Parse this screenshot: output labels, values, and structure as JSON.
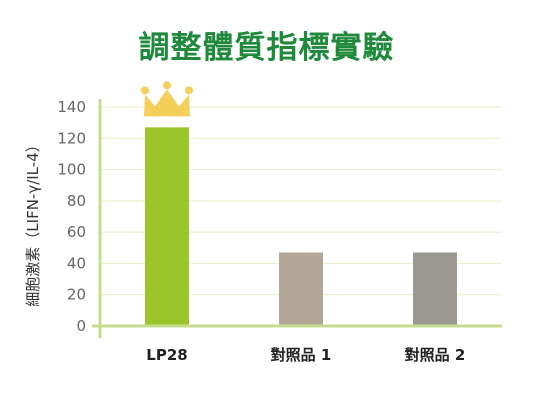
{
  "chart_data": {
    "type": "bar",
    "title": "調整體質指標實驗",
    "xlabel": "",
    "ylabel": "細胞激素（LIFN-γ/IL-4）",
    "categories": [
      "LP28",
      "對照品 1",
      "對照品 2"
    ],
    "values": [
      127,
      47,
      47
    ],
    "bar_colors": [
      "#9bc52a",
      "#b3a797",
      "#9a9890"
    ],
    "ylim": [
      0,
      140
    ],
    "yticks": [
      0,
      20,
      40,
      60,
      80,
      100,
      120,
      140
    ],
    "grid": true,
    "highlight_icon": "crown-icon"
  },
  "colors": {
    "title": "#1f8a3b",
    "axis": "#c5dc8f",
    "grid": "#e4efc8",
    "crown": "#f4cf5b"
  }
}
